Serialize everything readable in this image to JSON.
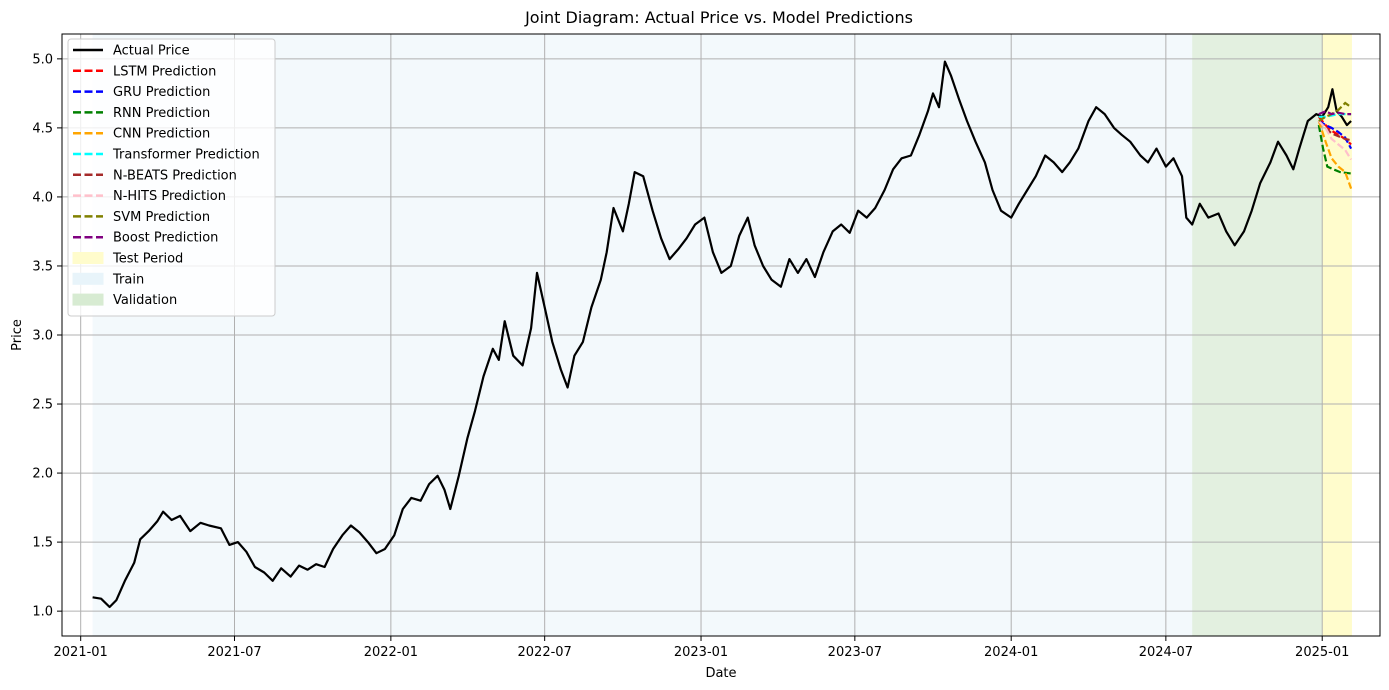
{
  "chart_data": {
    "type": "line",
    "title": "Joint Diagram: Actual Price vs. Model Predictions",
    "xlabel": "Date",
    "ylabel": "Price",
    "x_range": [
      "2020-12-10",
      "2025-03-10"
    ],
    "ylim": [
      0.82,
      5.18
    ],
    "grid": true,
    "legend_position": "top-left",
    "x_ticks": [
      "2021-01",
      "2021-07",
      "2022-01",
      "2022-07",
      "2023-01",
      "2023-07",
      "2024-01",
      "2024-07",
      "2025-01"
    ],
    "y_ticks": [
      "1.0",
      "1.5",
      "2.0",
      "2.5",
      "3.0",
      "3.5",
      "4.0",
      "4.5",
      "5.0"
    ],
    "regions": [
      {
        "name": "Train",
        "start": "2021-01-15",
        "end": "2024-08-01",
        "color": "#cfe8f3"
      },
      {
        "name": "Validation",
        "start": "2024-08-01",
        "end": "2025-01-01",
        "color": "#b9dab1"
      },
      {
        "name": "Test Period",
        "start": "2025-01-01",
        "end": "2025-02-05",
        "color": "#fffccc"
      }
    ],
    "actual": {
      "name": "Actual Price",
      "color": "#000000",
      "points": [
        [
          "2021-01-15",
          1.1
        ],
        [
          "2021-01-25",
          1.09
        ],
        [
          "2021-02-04",
          1.03
        ],
        [
          "2021-02-12",
          1.08
        ],
        [
          "2021-02-22",
          1.22
        ],
        [
          "2021-03-05",
          1.35
        ],
        [
          "2021-03-12",
          1.52
        ],
        [
          "2021-03-22",
          1.58
        ],
        [
          "2021-04-01",
          1.65
        ],
        [
          "2021-04-08",
          1.72
        ],
        [
          "2021-04-18",
          1.66
        ],
        [
          "2021-04-28",
          1.69
        ],
        [
          "2021-05-10",
          1.58
        ],
        [
          "2021-05-22",
          1.64
        ],
        [
          "2021-06-01",
          1.62
        ],
        [
          "2021-06-15",
          1.6
        ],
        [
          "2021-06-25",
          1.48
        ],
        [
          "2021-07-05",
          1.5
        ],
        [
          "2021-07-15",
          1.43
        ],
        [
          "2021-07-25",
          1.32
        ],
        [
          "2021-08-05",
          1.28
        ],
        [
          "2021-08-15",
          1.22
        ],
        [
          "2021-08-25",
          1.31
        ],
        [
          "2021-09-05",
          1.25
        ],
        [
          "2021-09-15",
          1.33
        ],
        [
          "2021-09-25",
          1.3
        ],
        [
          "2021-10-05",
          1.34
        ],
        [
          "2021-10-15",
          1.32
        ],
        [
          "2021-10-25",
          1.45
        ],
        [
          "2021-11-05",
          1.55
        ],
        [
          "2021-11-15",
          1.62
        ],
        [
          "2021-11-25",
          1.57
        ],
        [
          "2021-12-05",
          1.5
        ],
        [
          "2021-12-15",
          1.42
        ],
        [
          "2021-12-25",
          1.45
        ],
        [
          "2022-01-05",
          1.55
        ],
        [
          "2022-01-15",
          1.74
        ],
        [
          "2022-01-25",
          1.82
        ],
        [
          "2022-02-05",
          1.8
        ],
        [
          "2022-02-15",
          1.92
        ],
        [
          "2022-02-25",
          1.98
        ],
        [
          "2022-03-05",
          1.88
        ],
        [
          "2022-03-12",
          1.74
        ],
        [
          "2022-03-22",
          1.98
        ],
        [
          "2022-04-01",
          2.25
        ],
        [
          "2022-04-10",
          2.45
        ],
        [
          "2022-04-20",
          2.7
        ],
        [
          "2022-05-01",
          2.9
        ],
        [
          "2022-05-08",
          2.82
        ],
        [
          "2022-05-15",
          3.1
        ],
        [
          "2022-05-25",
          2.85
        ],
        [
          "2022-06-05",
          2.78
        ],
        [
          "2022-06-15",
          3.05
        ],
        [
          "2022-06-22",
          3.45
        ],
        [
          "2022-07-01",
          3.2
        ],
        [
          "2022-07-10",
          2.95
        ],
        [
          "2022-07-20",
          2.75
        ],
        [
          "2022-07-28",
          2.62
        ],
        [
          "2022-08-05",
          2.85
        ],
        [
          "2022-08-15",
          2.95
        ],
        [
          "2022-08-25",
          3.2
        ],
        [
          "2022-09-05",
          3.4
        ],
        [
          "2022-09-12",
          3.6
        ],
        [
          "2022-09-20",
          3.92
        ],
        [
          "2022-10-01",
          3.75
        ],
        [
          "2022-10-08",
          3.95
        ],
        [
          "2022-10-15",
          4.18
        ],
        [
          "2022-10-25",
          4.15
        ],
        [
          "2022-11-05",
          3.9
        ],
        [
          "2022-11-15",
          3.7
        ],
        [
          "2022-11-25",
          3.55
        ],
        [
          "2022-12-05",
          3.62
        ],
        [
          "2022-12-15",
          3.7
        ],
        [
          "2022-12-25",
          3.8
        ],
        [
          "2023-01-05",
          3.85
        ],
        [
          "2023-01-15",
          3.6
        ],
        [
          "2023-01-25",
          3.45
        ],
        [
          "2023-02-05",
          3.5
        ],
        [
          "2023-02-15",
          3.72
        ],
        [
          "2023-02-25",
          3.85
        ],
        [
          "2023-03-05",
          3.65
        ],
        [
          "2023-03-15",
          3.5
        ],
        [
          "2023-03-25",
          3.4
        ],
        [
          "2023-04-05",
          3.35
        ],
        [
          "2023-04-15",
          3.55
        ],
        [
          "2023-04-25",
          3.45
        ],
        [
          "2023-05-05",
          3.55
        ],
        [
          "2023-05-15",
          3.42
        ],
        [
          "2023-05-25",
          3.6
        ],
        [
          "2023-06-05",
          3.75
        ],
        [
          "2023-06-15",
          3.8
        ],
        [
          "2023-06-25",
          3.74
        ],
        [
          "2023-07-05",
          3.9
        ],
        [
          "2023-07-15",
          3.85
        ],
        [
          "2023-07-25",
          3.92
        ],
        [
          "2023-08-05",
          4.05
        ],
        [
          "2023-08-15",
          4.2
        ],
        [
          "2023-08-25",
          4.28
        ],
        [
          "2023-09-05",
          4.3
        ],
        [
          "2023-09-15",
          4.45
        ],
        [
          "2023-09-25",
          4.62
        ],
        [
          "2023-10-01",
          4.75
        ],
        [
          "2023-10-08",
          4.65
        ],
        [
          "2023-10-15",
          4.98
        ],
        [
          "2023-10-22",
          4.88
        ],
        [
          "2023-11-01",
          4.7
        ],
        [
          "2023-11-10",
          4.55
        ],
        [
          "2023-11-20",
          4.4
        ],
        [
          "2023-12-01",
          4.25
        ],
        [
          "2023-12-10",
          4.05
        ],
        [
          "2023-12-20",
          3.9
        ],
        [
          "2024-01-01",
          3.85
        ],
        [
          "2024-01-10",
          3.95
        ],
        [
          "2024-01-20",
          4.05
        ],
        [
          "2024-01-30",
          4.15
        ],
        [
          "2024-02-10",
          4.3
        ],
        [
          "2024-02-20",
          4.25
        ],
        [
          "2024-03-01",
          4.18
        ],
        [
          "2024-03-10",
          4.25
        ],
        [
          "2024-03-20",
          4.35
        ],
        [
          "2024-04-01",
          4.55
        ],
        [
          "2024-04-10",
          4.65
        ],
        [
          "2024-04-20",
          4.6
        ],
        [
          "2024-05-01",
          4.5
        ],
        [
          "2024-05-10",
          4.45
        ],
        [
          "2024-05-20",
          4.4
        ],
        [
          "2024-06-01",
          4.3
        ],
        [
          "2024-06-10",
          4.25
        ],
        [
          "2024-06-20",
          4.35
        ],
        [
          "2024-07-01",
          4.22
        ],
        [
          "2024-07-10",
          4.28
        ],
        [
          "2024-07-20",
          4.15
        ],
        [
          "2024-07-25",
          3.85
        ],
        [
          "2024-08-01",
          3.8
        ],
        [
          "2024-08-10",
          3.95
        ],
        [
          "2024-08-20",
          3.85
        ],
        [
          "2024-09-01",
          3.88
        ],
        [
          "2024-09-10",
          3.75
        ],
        [
          "2024-09-20",
          3.65
        ],
        [
          "2024-10-01",
          3.75
        ],
        [
          "2024-10-10",
          3.9
        ],
        [
          "2024-10-20",
          4.1
        ],
        [
          "2024-11-01",
          4.25
        ],
        [
          "2024-11-10",
          4.4
        ],
        [
          "2024-11-20",
          4.3
        ],
        [
          "2024-11-28",
          4.2
        ],
        [
          "2024-12-05",
          4.35
        ],
        [
          "2024-12-15",
          4.55
        ],
        [
          "2024-12-25",
          4.6
        ],
        [
          "2025-01-01",
          4.58
        ],
        [
          "2025-01-08",
          4.65
        ],
        [
          "2025-01-13",
          4.78
        ],
        [
          "2025-01-18",
          4.62
        ],
        [
          "2025-01-24",
          4.58
        ],
        [
          "2025-01-30",
          4.52
        ],
        [
          "2025-02-04",
          4.55
        ]
      ]
    },
    "series": [
      {
        "name": "LSTM Prediction",
        "color": "#ff0000",
        "points": [
          [
            "2024-12-28",
            4.58
          ],
          [
            "2025-01-05",
            4.52
          ],
          [
            "2025-01-12",
            4.48
          ],
          [
            "2025-01-20",
            4.45
          ],
          [
            "2025-01-28",
            4.42
          ],
          [
            "2025-02-04",
            4.38
          ]
        ]
      },
      {
        "name": "GRU Prediction",
        "color": "#0000ff",
        "points": [
          [
            "2024-12-28",
            4.55
          ],
          [
            "2025-01-05",
            4.52
          ],
          [
            "2025-01-12",
            4.5
          ],
          [
            "2025-01-20",
            4.47
          ],
          [
            "2025-01-28",
            4.43
          ],
          [
            "2025-02-04",
            4.35
          ]
        ]
      },
      {
        "name": "RNN Prediction",
        "color": "#008000",
        "points": [
          [
            "2024-12-28",
            4.52
          ],
          [
            "2025-01-02",
            4.35
          ],
          [
            "2025-01-07",
            4.22
          ],
          [
            "2025-01-14",
            4.2
          ],
          [
            "2025-01-22",
            4.18
          ],
          [
            "2025-02-04",
            4.17
          ]
        ]
      },
      {
        "name": "CNN Prediction",
        "color": "#ffa500",
        "points": [
          [
            "2024-12-28",
            4.55
          ],
          [
            "2025-01-05",
            4.4
          ],
          [
            "2025-01-12",
            4.28
          ],
          [
            "2025-01-20",
            4.22
          ],
          [
            "2025-01-28",
            4.18
          ],
          [
            "2025-02-04",
            4.06
          ]
        ]
      },
      {
        "name": "Transformer Prediction",
        "color": "#00ffff",
        "points": [
          [
            "2024-12-28",
            4.58
          ],
          [
            "2025-01-05",
            4.58
          ],
          [
            "2025-01-12",
            4.59
          ],
          [
            "2025-01-20",
            4.6
          ],
          [
            "2025-01-28",
            4.6
          ],
          [
            "2025-02-04",
            4.6
          ]
        ]
      },
      {
        "name": "N-BEATS Prediction",
        "color": "#a52a2a",
        "points": [
          [
            "2024-12-28",
            4.55
          ],
          [
            "2025-01-05",
            4.5
          ],
          [
            "2025-01-12",
            4.46
          ],
          [
            "2025-01-20",
            4.44
          ],
          [
            "2025-01-28",
            4.42
          ],
          [
            "2025-02-04",
            4.41
          ]
        ]
      },
      {
        "name": "N-HITS Prediction",
        "color": "#ffc0cb",
        "points": [
          [
            "2024-12-28",
            4.55
          ],
          [
            "2025-01-05",
            4.5
          ],
          [
            "2025-01-12",
            4.42
          ],
          [
            "2025-01-20",
            4.38
          ],
          [
            "2025-01-28",
            4.34
          ],
          [
            "2025-02-04",
            4.27
          ]
        ]
      },
      {
        "name": "SVM Prediction",
        "color": "#808000",
        "points": [
          [
            "2024-12-28",
            4.55
          ],
          [
            "2025-01-05",
            4.58
          ],
          [
            "2025-01-12",
            4.6
          ],
          [
            "2025-01-20",
            4.63
          ],
          [
            "2025-01-28",
            4.68
          ],
          [
            "2025-02-04",
            4.65
          ]
        ]
      },
      {
        "name": "Boost Prediction",
        "color": "#800080",
        "points": [
          [
            "2024-12-28",
            4.6
          ],
          [
            "2025-01-05",
            4.62
          ],
          [
            "2025-01-12",
            4.6
          ],
          [
            "2025-01-20",
            4.61
          ],
          [
            "2025-01-28",
            4.6
          ],
          [
            "2025-02-04",
            4.6
          ]
        ]
      }
    ],
    "legend": [
      {
        "label": "Actual Price",
        "kind": "solid",
        "color": "#000000"
      },
      {
        "label": "LSTM Prediction",
        "kind": "dashed",
        "color": "#ff0000"
      },
      {
        "label": "GRU Prediction",
        "kind": "dashed",
        "color": "#0000ff"
      },
      {
        "label": "RNN Prediction",
        "kind": "dashed",
        "color": "#008000"
      },
      {
        "label": "CNN Prediction",
        "kind": "dashed",
        "color": "#ffa500"
      },
      {
        "label": "Transformer Prediction",
        "kind": "dashed",
        "color": "#00ffff"
      },
      {
        "label": "N-BEATS Prediction",
        "kind": "dashed",
        "color": "#a52a2a"
      },
      {
        "label": "N-HITS Prediction",
        "kind": "dashed",
        "color": "#ffc0cb"
      },
      {
        "label": "SVM Prediction",
        "kind": "dashed",
        "color": "#808000"
      },
      {
        "label": "Boost Prediction",
        "kind": "dashed",
        "color": "#800080"
      },
      {
        "label": "Test Period",
        "kind": "patch",
        "color": "#fffccc"
      },
      {
        "label": "Train",
        "kind": "patch",
        "color": "#e8f4fa"
      },
      {
        "label": "Validation",
        "kind": "patch",
        "color": "#d7ebd2"
      }
    ]
  }
}
